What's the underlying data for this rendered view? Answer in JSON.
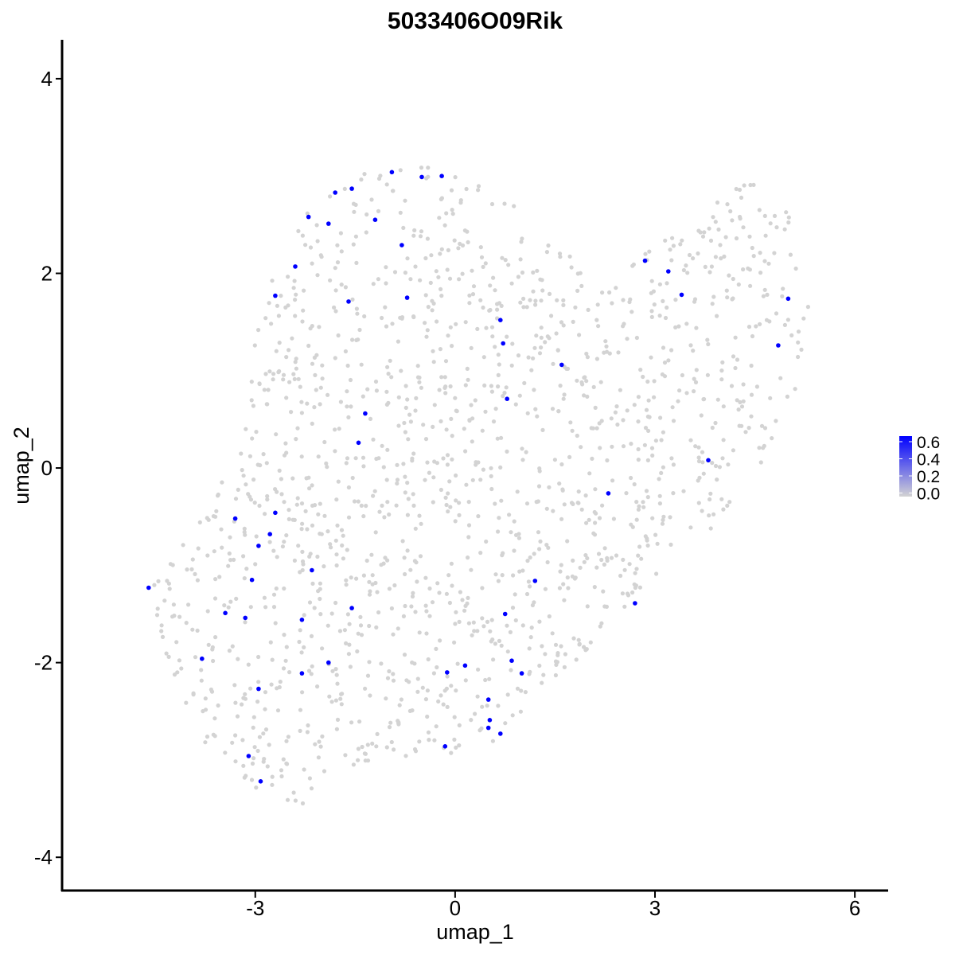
{
  "chart_data": {
    "type": "scatter",
    "title": "5033406O09Rik",
    "xlabel": "umap_1",
    "ylabel": "umap_2",
    "xlim": [
      -5.9,
      6.5
    ],
    "ylim": [
      -4.35,
      4.4
    ],
    "x_ticks": [
      {
        "value": -3,
        "label": "-3"
      },
      {
        "value": 0,
        "label": "0"
      },
      {
        "value": 3,
        "label": "3"
      },
      {
        "value": 6,
        "label": "6"
      }
    ],
    "y_ticks": [
      {
        "value": -4,
        "label": "-4"
      },
      {
        "value": -2,
        "label": "-2"
      },
      {
        "value": 0,
        "label": "0"
      },
      {
        "value": 2,
        "label": "2"
      },
      {
        "value": 4,
        "label": "4"
      }
    ],
    "grid": false,
    "legend": {
      "placement": "right",
      "type": "colorbar",
      "labels": [
        "0.6",
        "0.4",
        "0.2",
        "0.0"
      ],
      "range": [
        0,
        0.65
      ],
      "low_color": "#d3d3d3",
      "high_color": "#0000ff"
    },
    "background_color": "#d3d3d3",
    "expressed_color": "#0000ff",
    "expressing_cells": [
      {
        "x": -4.6,
        "y": -1.23,
        "v": 0.6
      },
      {
        "x": -3.8,
        "y": -1.96,
        "v": 0.6
      },
      {
        "x": -3.45,
        "y": -1.49,
        "v": 0.6
      },
      {
        "x": -3.3,
        "y": -0.52,
        "v": 0.6
      },
      {
        "x": -3.15,
        "y": -1.54,
        "v": 0.6
      },
      {
        "x": -3.1,
        "y": -2.96,
        "v": 0.6
      },
      {
        "x": -3.05,
        "y": -1.15,
        "v": 0.6
      },
      {
        "x": -2.95,
        "y": -2.27,
        "v": 0.6
      },
      {
        "x": -2.95,
        "y": -0.8,
        "v": 0.6
      },
      {
        "x": -2.92,
        "y": -3.22,
        "v": 0.6
      },
      {
        "x": -2.78,
        "y": -0.68,
        "v": 0.6
      },
      {
        "x": -2.7,
        "y": -0.46,
        "v": 0.6
      },
      {
        "x": -2.7,
        "y": 1.77,
        "v": 0.6
      },
      {
        "x": -2.4,
        "y": 2.07,
        "v": 0.6
      },
      {
        "x": -2.3,
        "y": -2.11,
        "v": 0.6
      },
      {
        "x": -2.3,
        "y": -1.56,
        "v": 0.6
      },
      {
        "x": -2.2,
        "y": 2.58,
        "v": 0.6
      },
      {
        "x": -2.15,
        "y": -1.05,
        "v": 0.6
      },
      {
        "x": -1.9,
        "y": 2.51,
        "v": 0.6
      },
      {
        "x": -1.9,
        "y": -2.0,
        "v": 0.6
      },
      {
        "x": -1.8,
        "y": 2.83,
        "v": 0.6
      },
      {
        "x": -1.6,
        "y": 1.71,
        "v": 0.6
      },
      {
        "x": -1.55,
        "y": 2.87,
        "v": 0.6
      },
      {
        "x": -1.55,
        "y": -1.44,
        "v": 0.6
      },
      {
        "x": -1.45,
        "y": 0.26,
        "v": 0.6
      },
      {
        "x": -1.35,
        "y": 0.56,
        "v": 0.6
      },
      {
        "x": -1.2,
        "y": 2.55,
        "v": 0.6
      },
      {
        "x": -0.95,
        "y": 3.04,
        "v": 0.6
      },
      {
        "x": -0.8,
        "y": 2.29,
        "v": 0.6
      },
      {
        "x": -0.72,
        "y": 1.75,
        "v": 0.6
      },
      {
        "x": -0.5,
        "y": 2.99,
        "v": 0.6
      },
      {
        "x": -0.2,
        "y": 3.0,
        "v": 0.6
      },
      {
        "x": -0.15,
        "y": -2.86,
        "v": 0.6
      },
      {
        "x": -0.12,
        "y": -2.1,
        "v": 0.6
      },
      {
        "x": 0.15,
        "y": -2.03,
        "v": 0.6
      },
      {
        "x": 0.5,
        "y": -2.38,
        "v": 0.6
      },
      {
        "x": 0.5,
        "y": -2.67,
        "v": 0.6
      },
      {
        "x": 0.52,
        "y": -2.59,
        "v": 0.6
      },
      {
        "x": 0.68,
        "y": -2.73,
        "v": 0.6
      },
      {
        "x": 0.68,
        "y": 1.52,
        "v": 0.6
      },
      {
        "x": 0.72,
        "y": 1.28,
        "v": 0.6
      },
      {
        "x": 0.75,
        "y": -1.5,
        "v": 0.6
      },
      {
        "x": 0.78,
        "y": 0.71,
        "v": 0.6
      },
      {
        "x": 0.85,
        "y": -1.98,
        "v": 0.6
      },
      {
        "x": 1.0,
        "y": -2.11,
        "v": 0.6
      },
      {
        "x": 1.2,
        "y": -1.16,
        "v": 0.6
      },
      {
        "x": 1.6,
        "y": 1.06,
        "v": 0.6
      },
      {
        "x": 2.3,
        "y": -0.26,
        "v": 0.6
      },
      {
        "x": 2.7,
        "y": -1.39,
        "v": 0.6
      },
      {
        "x": 2.85,
        "y": 2.13,
        "v": 0.6
      },
      {
        "x": 3.2,
        "y": 2.02,
        "v": 0.6
      },
      {
        "x": 3.4,
        "y": 1.78,
        "v": 0.6
      },
      {
        "x": 3.8,
        "y": 0.08,
        "v": 0.6
      },
      {
        "x": 4.85,
        "y": 1.26,
        "v": 0.6
      },
      {
        "x": 5.0,
        "y": 1.74,
        "v": 0.6
      }
    ],
    "cloud_outline": [
      [
        -4.75,
        -1.3
      ],
      [
        -4.2,
        -0.9
      ],
      [
        -3.6,
        -0.3
      ],
      [
        -3.2,
        0.5
      ],
      [
        -3.0,
        1.3
      ],
      [
        -2.8,
        1.9
      ],
      [
        -2.5,
        2.4
      ],
      [
        -2.0,
        2.8
      ],
      [
        -1.3,
        3.05
      ],
      [
        -0.5,
        3.1
      ],
      [
        0.3,
        3.1
      ],
      [
        0.9,
        2.8
      ],
      [
        1.5,
        2.3
      ],
      [
        2.3,
        1.9
      ],
      [
        3.0,
        2.3
      ],
      [
        3.7,
        2.6
      ],
      [
        4.3,
        3.0
      ],
      [
        4.7,
        2.9
      ],
      [
        5.2,
        2.5
      ],
      [
        5.4,
        1.9
      ],
      [
        5.2,
        1.0
      ],
      [
        4.8,
        0.2
      ],
      [
        4.2,
        -0.4
      ],
      [
        3.6,
        -0.8
      ],
      [
        3.0,
        -1.2
      ],
      [
        2.4,
        -1.6
      ],
      [
        1.8,
        -2.0
      ],
      [
        1.2,
        -2.4
      ],
      [
        0.6,
        -2.85
      ],
      [
        0.1,
        -3.0
      ],
      [
        -0.6,
        -2.95
      ],
      [
        -1.3,
        -3.1
      ],
      [
        -1.9,
        -3.4
      ],
      [
        -2.4,
        -3.5
      ],
      [
        -3.0,
        -3.3
      ],
      [
        -3.6,
        -3.0
      ],
      [
        -4.0,
        -2.6
      ],
      [
        -4.3,
        -2.0
      ],
      [
        -4.5,
        -1.6
      ]
    ],
    "background_cell_count": 1500,
    "random_seed": 42
  }
}
